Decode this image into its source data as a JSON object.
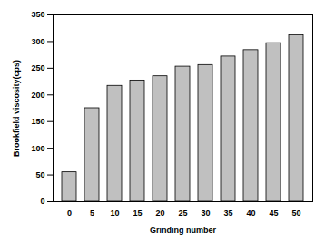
{
  "chart_data": {
    "type": "bar",
    "x_label": "Grinding number",
    "y_label": "Brookfield viscosity(cps)",
    "categories": [
      "0",
      "5",
      "10",
      "15",
      "20",
      "25",
      "30",
      "35",
      "40",
      "45",
      "50"
    ],
    "values": [
      55,
      175,
      217,
      227,
      235,
      253,
      256,
      272,
      284,
      297,
      312
    ],
    "color": "#c0c0c0",
    "ylim": [
      0,
      350
    ],
    "yticks": [
      0,
      50,
      100,
      150,
      200,
      250,
      300,
      350
    ],
    "grid": false
  }
}
